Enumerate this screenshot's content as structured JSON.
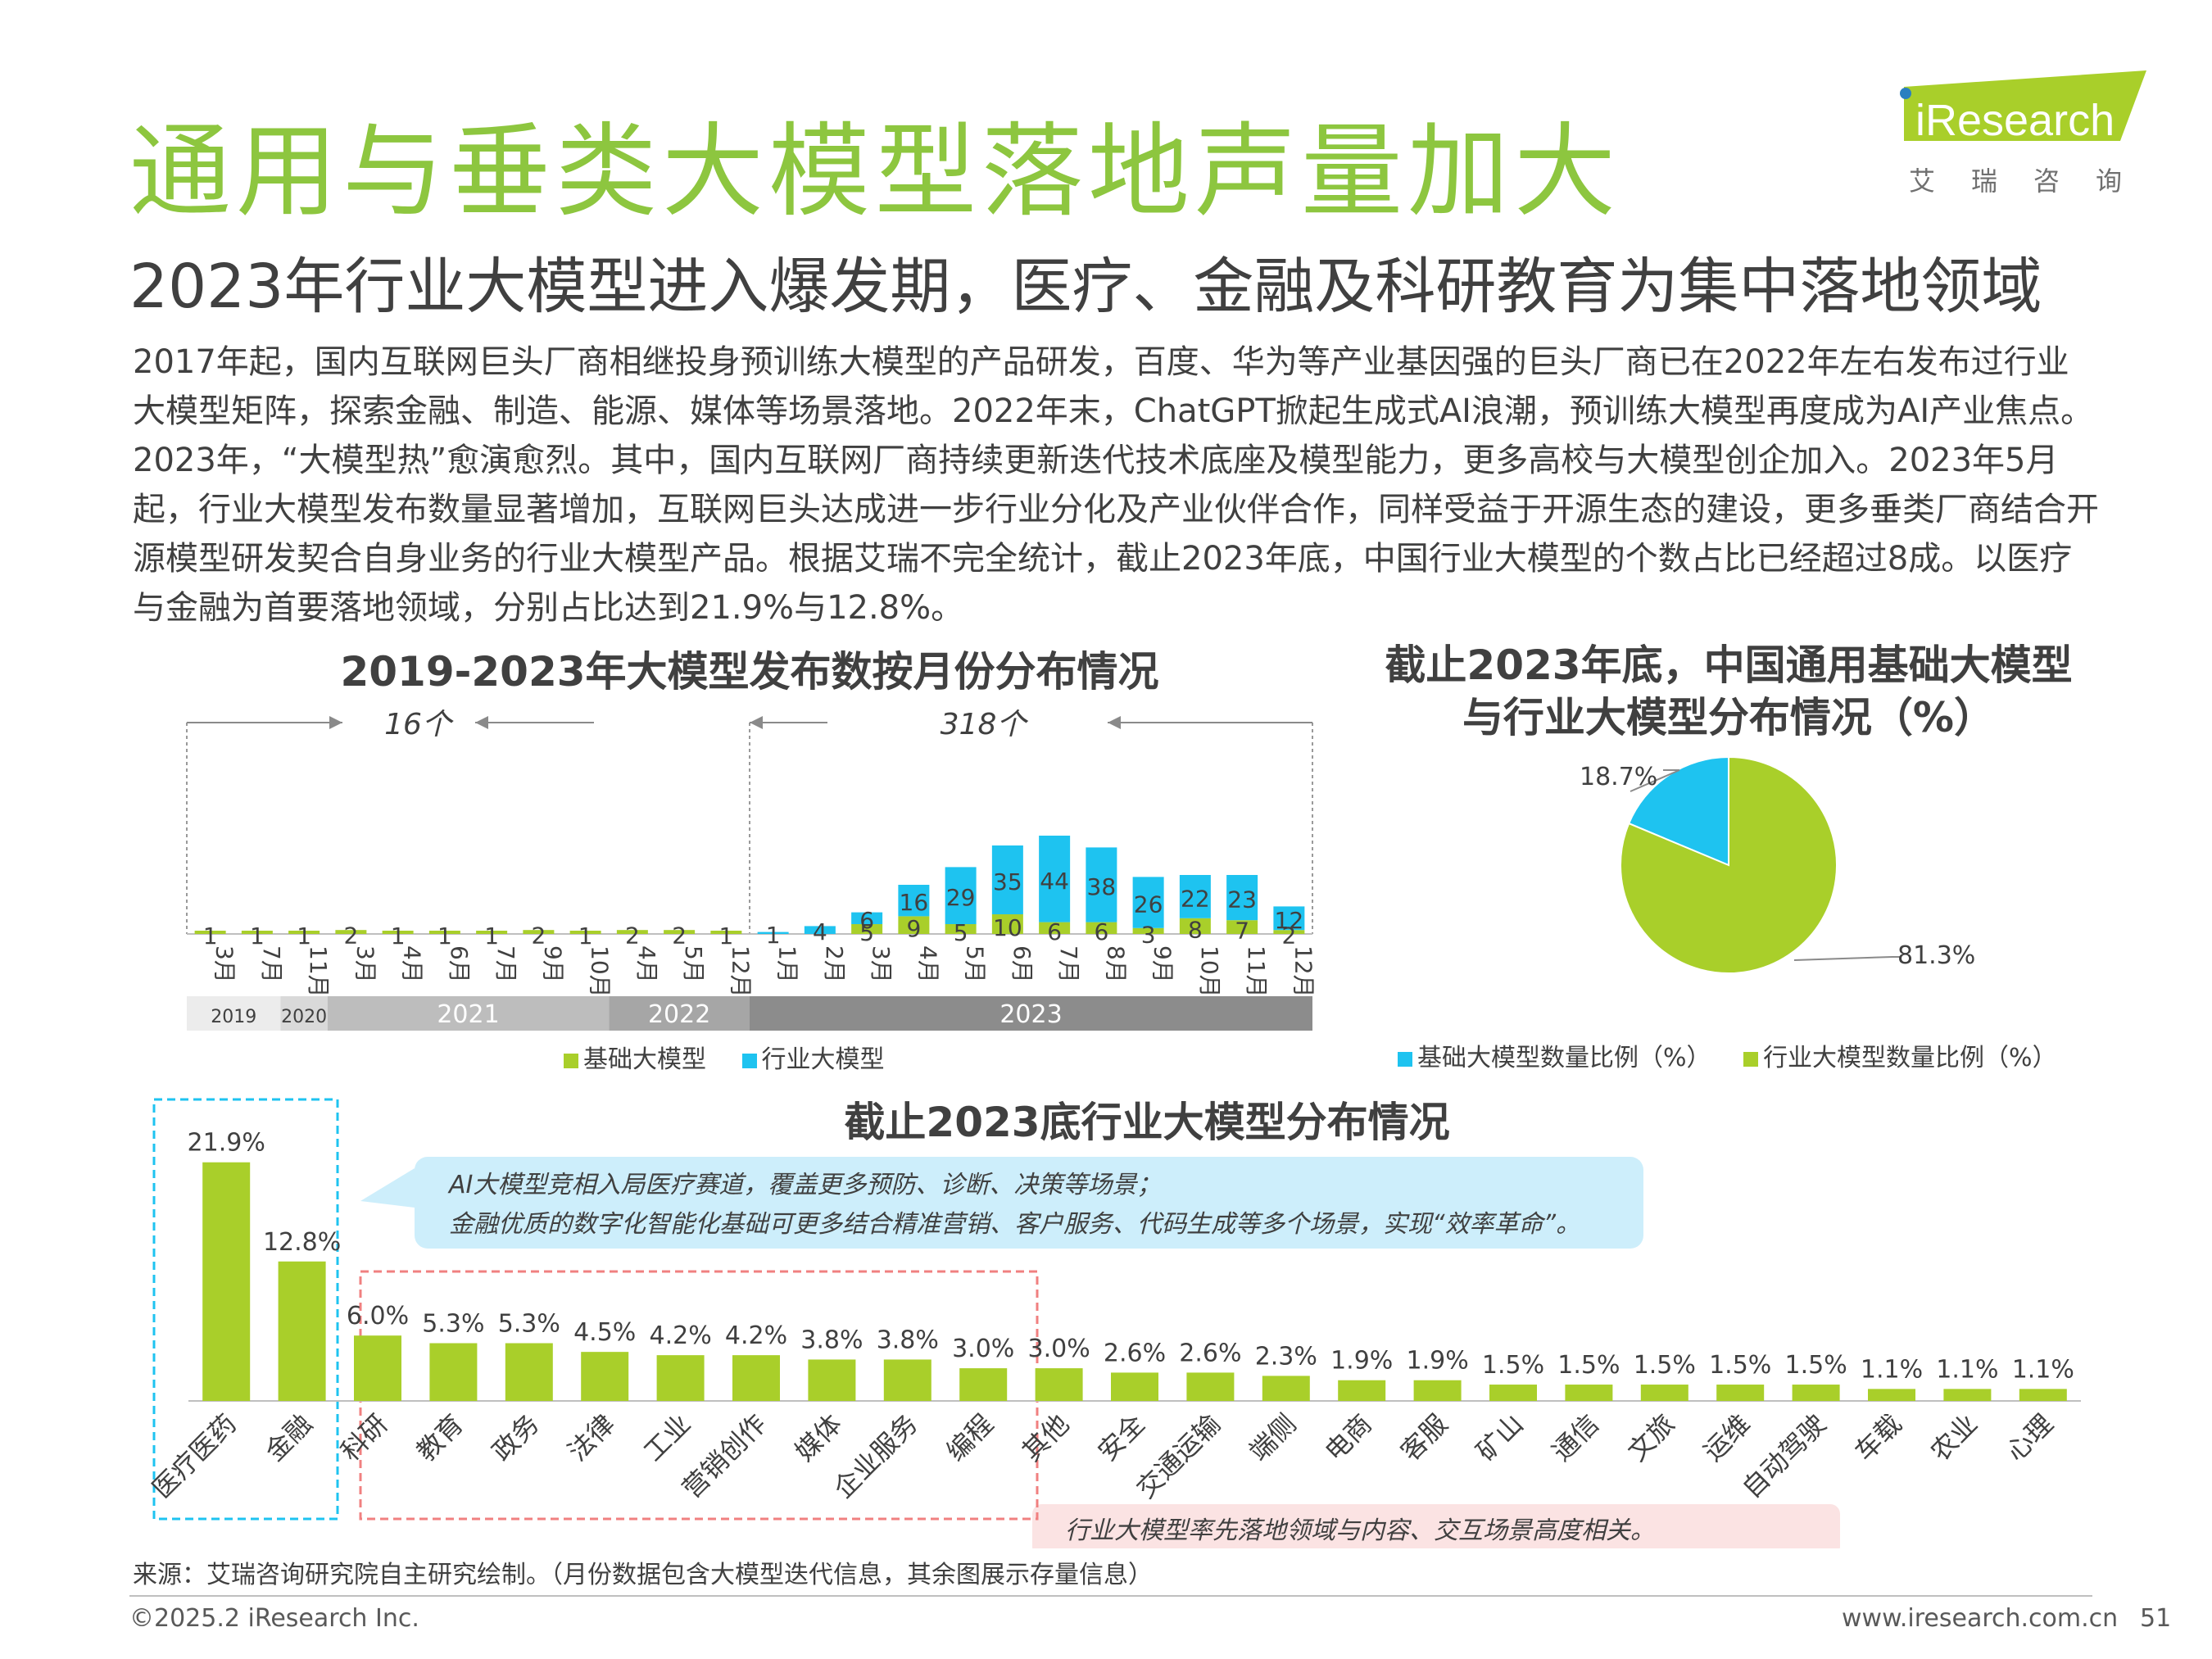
{
  "header": {
    "title": "通用与垂类大模型落地声量加大",
    "subtitle": "2023年行业大模型进入爆发期，医疗、金融及科研教育为集中落地领域",
    "logo_text": "iResearch",
    "logo_cn": "艾瑞咨询"
  },
  "body_text": "2017年起，国内互联网巨头厂商相继投身预训练大模型的产品研发，百度、华为等产业基因强的巨头厂商已在2022年左右发布过行业大模型矩阵，探索金融、制造、能源、媒体等场景落地。2022年末，ChatGPT掀起生成式AI浪潮，预训练大模型再度成为AI产业焦点。2023年，“大模型热”愈演愈烈。其中，国内互联网厂商持续更新迭代技术底座及模型能力，更多高校与大模型创企加入。2023年5月起，行业大模型发布数量显著增加，互联网巨头达成进一步行业分化及产业伙伴合作，同样受益于开源生态的建设，更多垂类厂商结合开源模型研发契合自身业务的行业大模型产品。根据艾瑞不完全统计，截止2023年底，中国行业大模型的个数占比已经超过8成。以医疗与金融为首要落地领域，分别占比达到21.9%与12.8%。",
  "colors": {
    "green": "#a9cf2a",
    "blue": "#1ec3f0",
    "title_green": "#8dc63f"
  },
  "chart_data": [
    {
      "type": "bar",
      "stacked": true,
      "title": "2019-2023年大模型发布数按月份分布情况",
      "categories": [
        "3月",
        "7月",
        "11月",
        "3月",
        "4月",
        "6月",
        "7月",
        "9月",
        "10月",
        "4月",
        "5月",
        "12月",
        "1月",
        "2月",
        "3月",
        "4月",
        "5月",
        "6月",
        "7月",
        "8月",
        "9月",
        "10月",
        "11月",
        "12月"
      ],
      "year_groups": [
        {
          "label": "2019",
          "count": 2
        },
        {
          "label": "2020",
          "count": 1
        },
        {
          "label": "2021",
          "count": 6
        },
        {
          "label": "2022",
          "count": 3
        },
        {
          "label": "2023",
          "count": 12
        }
      ],
      "series": [
        {
          "name": "基础大模型",
          "color": "#a9cf2a",
          "values": [
            1,
            1,
            1,
            2,
            1,
            1,
            1,
            2,
            1,
            2,
            2,
            1,
            0,
            0,
            5,
            9,
            5,
            10,
            6,
            6,
            3,
            8,
            7,
            2
          ]
        },
        {
          "name": "行业大模型",
          "color": "#1ec3f0",
          "values": [
            0,
            0,
            0,
            0,
            0,
            0,
            0,
            0,
            0,
            0,
            0,
            0,
            1,
            4,
            6,
            16,
            29,
            35,
            44,
            38,
            26,
            22,
            23,
            12
          ]
        }
      ],
      "annotations": [
        {
          "text": "16个",
          "span": "2019-2022"
        },
        {
          "text": "318个",
          "span": "2023"
        }
      ],
      "legend_position": "bottom"
    },
    {
      "type": "pie",
      "title": "截止2023年底，中国通用基础大模型与行业大模型分布情况（%）",
      "title_lines": [
        "截止2023年底，中国通用基础大模型",
        "与行业大模型分布情况（%）"
      ],
      "slices": [
        {
          "name": "基础大模型数量比例（%）",
          "value": 18.7,
          "label": "18.7%",
          "color": "#1ec3f0"
        },
        {
          "name": "行业大模型数量比例（%）",
          "value": 81.3,
          "label": "81.3%",
          "color": "#a9cf2a"
        }
      ],
      "legend_position": "bottom"
    },
    {
      "type": "bar",
      "title": "截止2023底行业大模型分布情况",
      "categories": [
        "医疗医药",
        "金融",
        "科研",
        "教育",
        "政务",
        "法律",
        "工业",
        "营销创作",
        "媒体",
        "企业服务",
        "编程",
        "其他",
        "安全",
        "交通运输",
        "端侧",
        "电商",
        "客服",
        "矿山",
        "通信",
        "文旅",
        "运维",
        "自动驾驶",
        "车载",
        "农业",
        "心理"
      ],
      "values": [
        21.9,
        12.8,
        6.0,
        5.3,
        5.3,
        4.5,
        4.2,
        4.2,
        3.8,
        3.8,
        3.0,
        3.0,
        2.6,
        2.6,
        2.3,
        1.9,
        1.9,
        1.5,
        1.5,
        1.5,
        1.5,
        1.5,
        1.1,
        1.1,
        1.1
      ],
      "value_labels": [
        "21.9%",
        "12.8%",
        "6.0%",
        "5.3%",
        "5.3%",
        "4.5%",
        "4.2%",
        "4.2%",
        "3.8%",
        "3.8%",
        "3.0%",
        "3.0%",
        "2.6%",
        "2.6%",
        "2.3%",
        "1.9%",
        "1.9%",
        "1.5%",
        "1.5%",
        "1.5%",
        "1.5%",
        "1.5%",
        "1.1%",
        "1.1%",
        "1.1%"
      ],
      "color": "#a9cf2a",
      "callouts": [
        "AI大模型竞相入局医疗赛道，覆盖更多预防、诊断、决策等场景；",
        "金融优质的数字化智能化基础可更多结合精准营销、客户服务、代码生成等多个场景，实现“效率革命”。",
        "行业大模型率先落地领域与内容、交互场景高度相关。"
      ]
    }
  ],
  "footer": {
    "source": "来源：艾瑞咨询研究院自主研究绘制。（月份数据包含大模型迭代信息，其余图展示存量信息）",
    "copyright": "©2025.2 iResearch Inc.",
    "website": "www.iresearch.com.cn",
    "page": "51"
  }
}
